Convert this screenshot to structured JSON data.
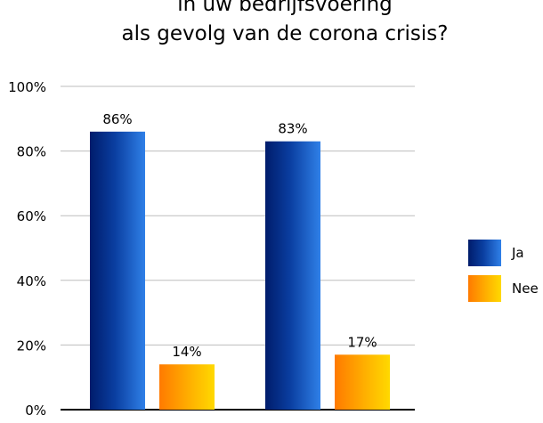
{
  "chart_data": {
    "type": "bar",
    "title_lines": [
      "in uw bedrijfsvoering",
      "als gevolg van de corona crisis?"
    ],
    "categories": [
      "",
      ""
    ],
    "series": [
      {
        "name": "Ja",
        "values": [
          86,
          83
        ],
        "labels": [
          "86%",
          "83%"
        ],
        "color": "#0a3ea0"
      },
      {
        "name": "Nee",
        "values": [
          14,
          17
        ],
        "labels": [
          "14%",
          "17%"
        ],
        "color": "#ffa200"
      }
    ],
    "yticks": [
      0,
      20,
      40,
      60,
      80,
      100
    ],
    "ytick_labels": [
      "0%",
      "20%",
      "40%",
      "60%",
      "80%",
      "100%"
    ],
    "ylim": [
      0,
      100
    ],
    "grid": true,
    "legend_position": "right"
  }
}
